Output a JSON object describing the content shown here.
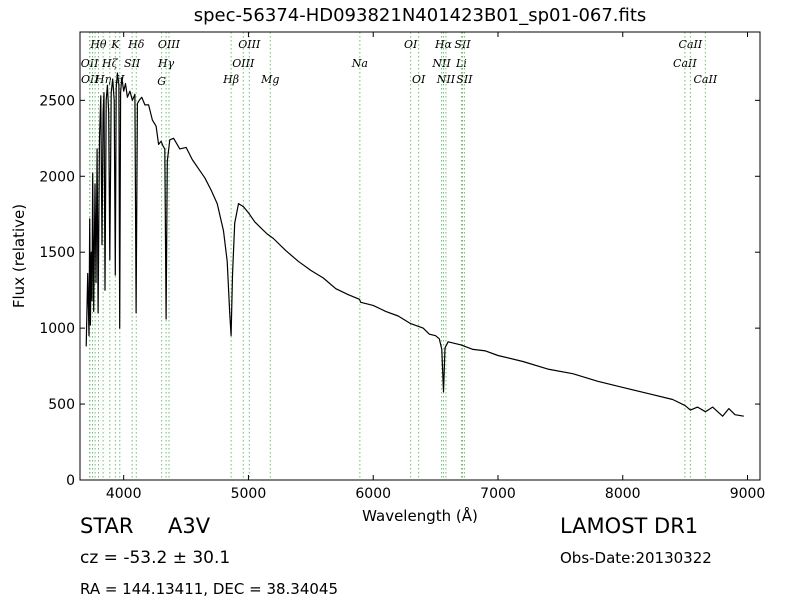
{
  "chart_data": {
    "type": "line",
    "title": "spec-56374-HD093821N401423B01_sp01-067.fits",
    "xlabel": "Wavelength (Å)",
    "ylabel": "Flux (relative)",
    "xlim": [
      3650,
      9100
    ],
    "ylim": [
      0,
      2950
    ],
    "xticks": [
      4000,
      5000,
      6000,
      7000,
      8000,
      9000
    ],
    "yticks": [
      0,
      500,
      1000,
      1500,
      2000,
      2500
    ],
    "grid": false,
    "legend": "none",
    "line_color": "#000000",
    "marker_color": "#6dbf6d",
    "series": [
      {
        "x": [
          3700,
          3712,
          3722,
          3728,
          3733,
          3740,
          3746,
          3752,
          3760,
          3770,
          3778,
          3787,
          3795,
          3806,
          3817,
          3826,
          3835,
          3842,
          3850,
          3860,
          3870,
          3880,
          3889,
          3900,
          3912,
          3924,
          3933,
          3940,
          3950,
          3962,
          3968,
          3975,
          3985,
          4000,
          4015,
          4030,
          4050,
          4070,
          4090,
          4100,
          4110,
          4125,
          4145,
          4170,
          4200,
          4230,
          4260,
          4280,
          4300,
          4315,
          4330,
          4340,
          4350,
          4370,
          4400,
          4450,
          4500,
          4550,
          4600,
          4650,
          4700,
          4750,
          4800,
          4830,
          4850,
          4861,
          4872,
          4890,
          4920,
          4960,
          5000,
          5050,
          5100,
          5150,
          5200,
          5300,
          5400,
          5500,
          5600,
          5700,
          5800,
          5890,
          5900,
          6000,
          6100,
          6200,
          6300,
          6400,
          6450,
          6500,
          6530,
          6550,
          6563,
          6575,
          6600,
          6650,
          6700,
          6800,
          6900,
          7000,
          7200,
          7400,
          7600,
          7800,
          8000,
          8200,
          8400,
          8500,
          8542,
          8600,
          8662,
          8720,
          8800,
          8850,
          8900,
          8970
        ],
        "y": [
          880,
          1360,
          950,
          1720,
          1020,
          1500,
          1180,
          2020,
          1110,
          1950,
          1300,
          2180,
          1100,
          2250,
          2530,
          1550,
          2420,
          2550,
          1250,
          2500,
          2600,
          2420,
          1450,
          2550,
          2640,
          2500,
          1350,
          2580,
          2680,
          2600,
          1000,
          2550,
          2650,
          2560,
          2610,
          2520,
          2560,
          2500,
          2540,
          1100,
          2480,
          2500,
          2520,
          2470,
          2470,
          2370,
          2330,
          2210,
          2230,
          2200,
          2180,
          1060,
          2100,
          2240,
          2250,
          2180,
          2190,
          2110,
          2050,
          1990,
          1910,
          1820,
          1640,
          1440,
          1100,
          950,
          1350,
          1690,
          1820,
          1800,
          1760,
          1700,
          1660,
          1620,
          1590,
          1510,
          1440,
          1380,
          1330,
          1260,
          1220,
          1190,
          1170,
          1150,
          1110,
          1080,
          1030,
          1000,
          960,
          950,
          930,
          860,
          580,
          870,
          910,
          900,
          890,
          860,
          850,
          820,
          780,
          730,
          700,
          650,
          610,
          570,
          530,
          490,
          460,
          480,
          450,
          480,
          420,
          470,
          430,
          420
        ]
      }
    ],
    "line_markers": [
      {
        "x": 3727,
        "label": "OII",
        "row": 2
      },
      {
        "x": 3729,
        "label": "OII",
        "row": 3
      },
      {
        "x": 3750,
        "label": "",
        "row": 0
      },
      {
        "x": 3771,
        "label": "",
        "row": 0
      },
      {
        "x": 3798,
        "label": "Hθ",
        "row": 1
      },
      {
        "x": 3835,
        "label": "Hη",
        "row": 3
      },
      {
        "x": 3889,
        "label": "Hζ",
        "row": 2
      },
      {
        "x": 3933,
        "label": "K",
        "row": 1
      },
      {
        "x": 3969,
        "label": "H",
        "row": 3
      },
      {
        "x": 4068,
        "label": "SII",
        "row": 2
      },
      {
        "x": 4101,
        "label": "Hδ",
        "row": 1
      },
      {
        "x": 4304,
        "label": "G",
        "row": 4
      },
      {
        "x": 4340,
        "label": "Hγ",
        "row": 2
      },
      {
        "x": 4363,
        "label": "OIII",
        "row": 1
      },
      {
        "x": 4861,
        "label": "Hβ",
        "row": 3
      },
      {
        "x": 4959,
        "label": "OIII",
        "row": 2
      },
      {
        "x": 5007,
        "label": "OIII",
        "row": 1
      },
      {
        "x": 5175,
        "label": "Mg",
        "row": 3
      },
      {
        "x": 5893,
        "label": "Na",
        "row": 2
      },
      {
        "x": 6300,
        "label": "OI",
        "row": 1
      },
      {
        "x": 6364,
        "label": "OI",
        "row": 3
      },
      {
        "x": 6548,
        "label": "NII",
        "row": 2
      },
      {
        "x": 6563,
        "label": "Hα",
        "row": 1
      },
      {
        "x": 6583,
        "label": "NII",
        "row": 3
      },
      {
        "x": 6707,
        "label": "Li",
        "row": 2
      },
      {
        "x": 6716,
        "label": "SII",
        "row": 1
      },
      {
        "x": 6731,
        "label": "SII",
        "row": 3
      },
      {
        "x": 8498,
        "label": "CaII",
        "row": 2
      },
      {
        "x": 8542,
        "label": "CaII",
        "row": 1
      },
      {
        "x": 8662,
        "label": "CaII",
        "row": 3
      }
    ]
  },
  "footer": {
    "class_label": "STAR",
    "class_value": "A3V",
    "cz_text": "cz = -53.2 ± 30.1",
    "radec_text": "RA = 144.13411, DEC = 38.34045",
    "survey": "LAMOST DR1",
    "obs_date": "Obs-Date:20130322"
  }
}
